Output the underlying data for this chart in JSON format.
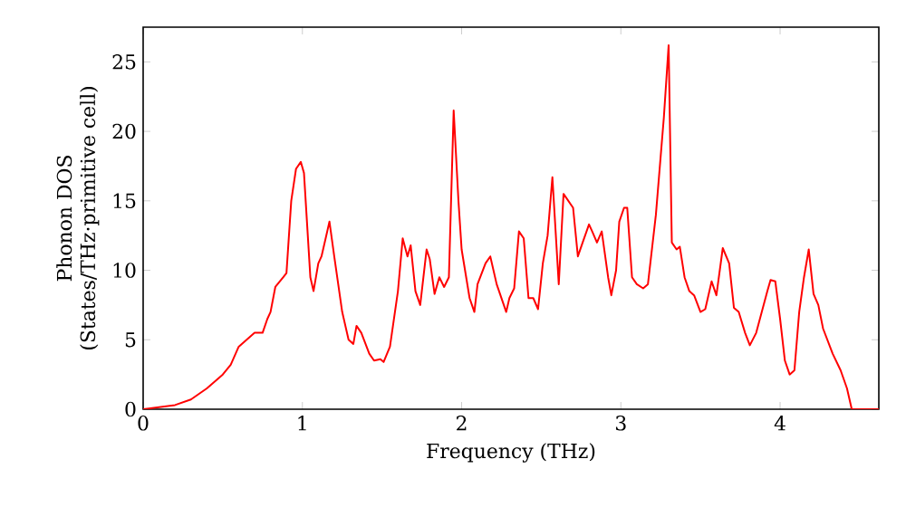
{
  "chart_data": {
    "type": "line",
    "xlabel": "Frequency (THz)",
    "ylabel": "Phonon DOS\n(States/THz·primitive cell)",
    "xlim": [
      0,
      4.62
    ],
    "ylim": [
      0,
      27.5
    ],
    "xticks": [
      0,
      1,
      2,
      3,
      4
    ],
    "yticks": [
      0,
      5,
      10,
      15,
      20,
      25
    ],
    "marker": "none",
    "line_style": "solid",
    "series": [
      {
        "color": "#ff0000",
        "x": [
          0,
          0.2,
          0.3,
          0.4,
          0.5,
          0.55,
          0.6,
          0.65,
          0.7,
          0.75,
          0.78,
          0.8,
          0.83,
          0.88,
          0.9,
          0.93,
          0.96,
          0.99,
          1.01,
          1.05,
          1.07,
          1.1,
          1.12,
          1.15,
          1.17,
          1.2,
          1.25,
          1.29,
          1.32,
          1.34,
          1.37,
          1.42,
          1.45,
          1.49,
          1.51,
          1.55,
          1.6,
          1.63,
          1.66,
          1.68,
          1.71,
          1.74,
          1.78,
          1.8,
          1.83,
          1.86,
          1.89,
          1.92,
          1.95,
          1.98,
          2.0,
          2.05,
          2.08,
          2.1,
          2.15,
          2.18,
          2.22,
          2.25,
          2.28,
          2.3,
          2.33,
          2.36,
          2.39,
          2.42,
          2.45,
          2.48,
          2.51,
          2.54,
          2.57,
          2.61,
          2.64,
          2.67,
          2.7,
          2.73,
          2.76,
          2.8,
          2.82,
          2.85,
          2.88,
          2.92,
          2.94,
          2.97,
          2.99,
          3.02,
          3.04,
          3.07,
          3.1,
          3.14,
          3.17,
          3.22,
          3.27,
          3.3,
          3.32,
          3.35,
          3.37,
          3.4,
          3.43,
          3.46,
          3.5,
          3.53,
          3.57,
          3.6,
          3.64,
          3.68,
          3.71,
          3.74,
          3.78,
          3.81,
          3.85,
          3.88,
          3.92,
          3.94,
          3.97,
          4.0,
          4.03,
          4.06,
          4.09,
          4.12,
          4.15,
          4.18,
          4.21,
          4.24,
          4.27,
          4.33,
          4.38,
          4.42,
          4.45,
          4.62
        ],
        "values": [
          0,
          0.3,
          0.7,
          1.5,
          2.5,
          3.2,
          4.5,
          5,
          5.5,
          5.5,
          6.5,
          7,
          8.8,
          9.5,
          9.8,
          15,
          17.3,
          17.8,
          17,
          9.5,
          8.5,
          10.5,
          11,
          12.5,
          13.5,
          11,
          7,
          5,
          4.7,
          6,
          5.5,
          4,
          3.5,
          3.6,
          3.4,
          4.5,
          8.5,
          12.3,
          11,
          11.8,
          8.5,
          7.5,
          11.5,
          10.8,
          8.3,
          9.5,
          8.8,
          9.5,
          21.5,
          15,
          11.5,
          8,
          7,
          9,
          10.5,
          11,
          9,
          8,
          7,
          8,
          8.7,
          12.8,
          12.3,
          8,
          8,
          7.2,
          10.5,
          12.5,
          16.7,
          9,
          15.5,
          15,
          14.5,
          11,
          12,
          13.3,
          12.8,
          12,
          12.8,
          9.5,
          8.2,
          10,
          13.5,
          14.5,
          14.5,
          9.5,
          9,
          8.7,
          9,
          14,
          21,
          26.2,
          12,
          11.5,
          11.7,
          9.5,
          8.5,
          8.2,
          7,
          7.2,
          9.2,
          8.2,
          11.6,
          10.5,
          7.3,
          7,
          5.5,
          4.6,
          5.5,
          6.8,
          8.5,
          9.3,
          9.2,
          6.5,
          3.5,
          2.5,
          2.8,
          7,
          9.5,
          11.5,
          8.3,
          7.5,
          5.8,
          4,
          2.8,
          1.5,
          0,
          0
        ]
      }
    ]
  }
}
